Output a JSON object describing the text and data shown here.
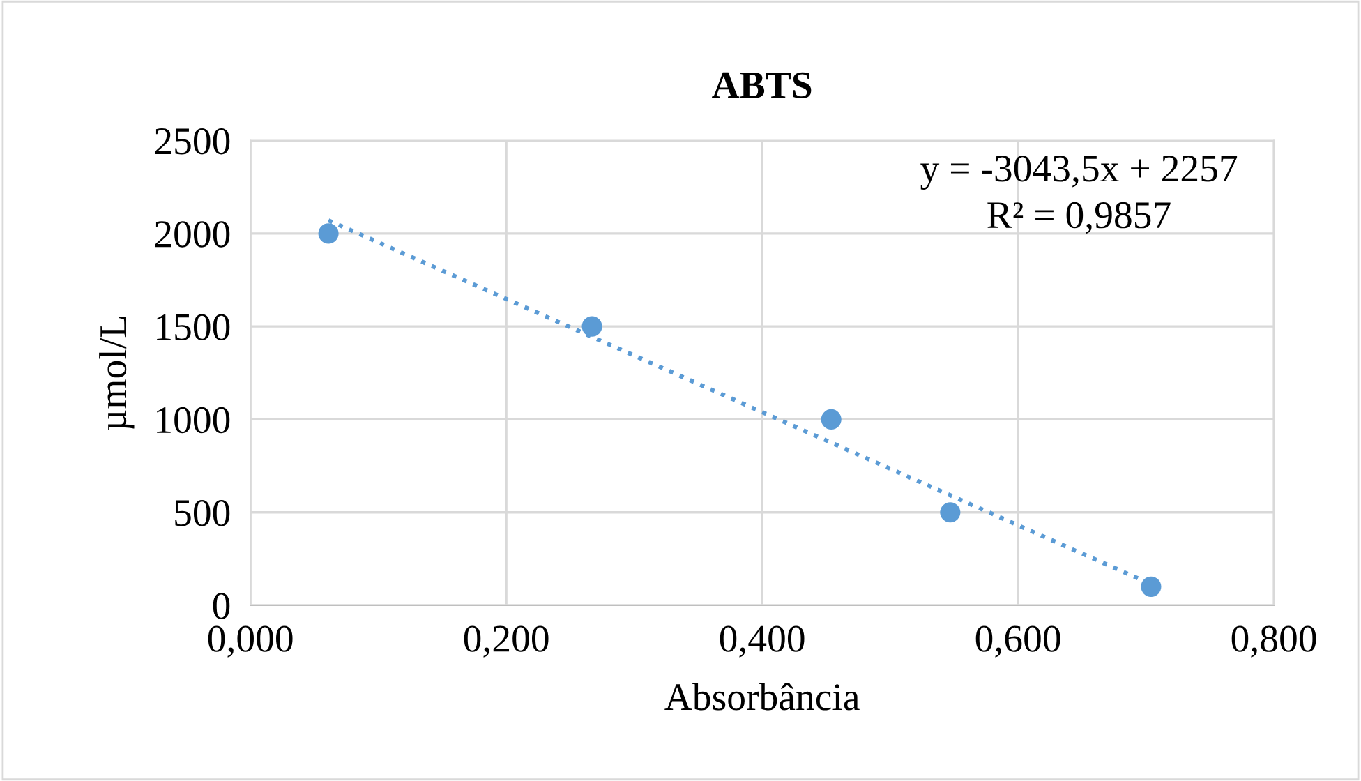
{
  "chart_data": {
    "type": "scatter",
    "title": "ABTS",
    "xlabel": "Absorbância",
    "ylabel": "µmol/L",
    "xlim": [
      0,
      0.8
    ],
    "ylim": [
      0,
      2500
    ],
    "xticks": [
      {
        "value": 0,
        "label": "0,000"
      },
      {
        "value": 0.2,
        "label": "0,200"
      },
      {
        "value": 0.4,
        "label": "0,400"
      },
      {
        "value": 0.6,
        "label": "0,600"
      },
      {
        "value": 0.8,
        "label": "0,800"
      }
    ],
    "yticks": [
      0,
      500,
      1000,
      1500,
      2000,
      2500
    ],
    "grid": true,
    "legend": false,
    "series": [
      {
        "color": "#5b9bd5",
        "marker": "circle",
        "x": [
          0.061,
          0.267,
          0.454,
          0.547,
          0.704
        ],
        "values": [
          2000,
          1500,
          1000,
          500,
          100
        ]
      },
      {
        "type": "line",
        "color": "#5b9bd5",
        "marker": "none",
        "line_style": "dotted",
        "x": [
          0.061,
          0.704
        ],
        "values": [
          2071,
          114
        ]
      }
    ],
    "annotations": [
      "y = -3043,5x + 2257",
      "R² = 0,9857"
    ]
  }
}
